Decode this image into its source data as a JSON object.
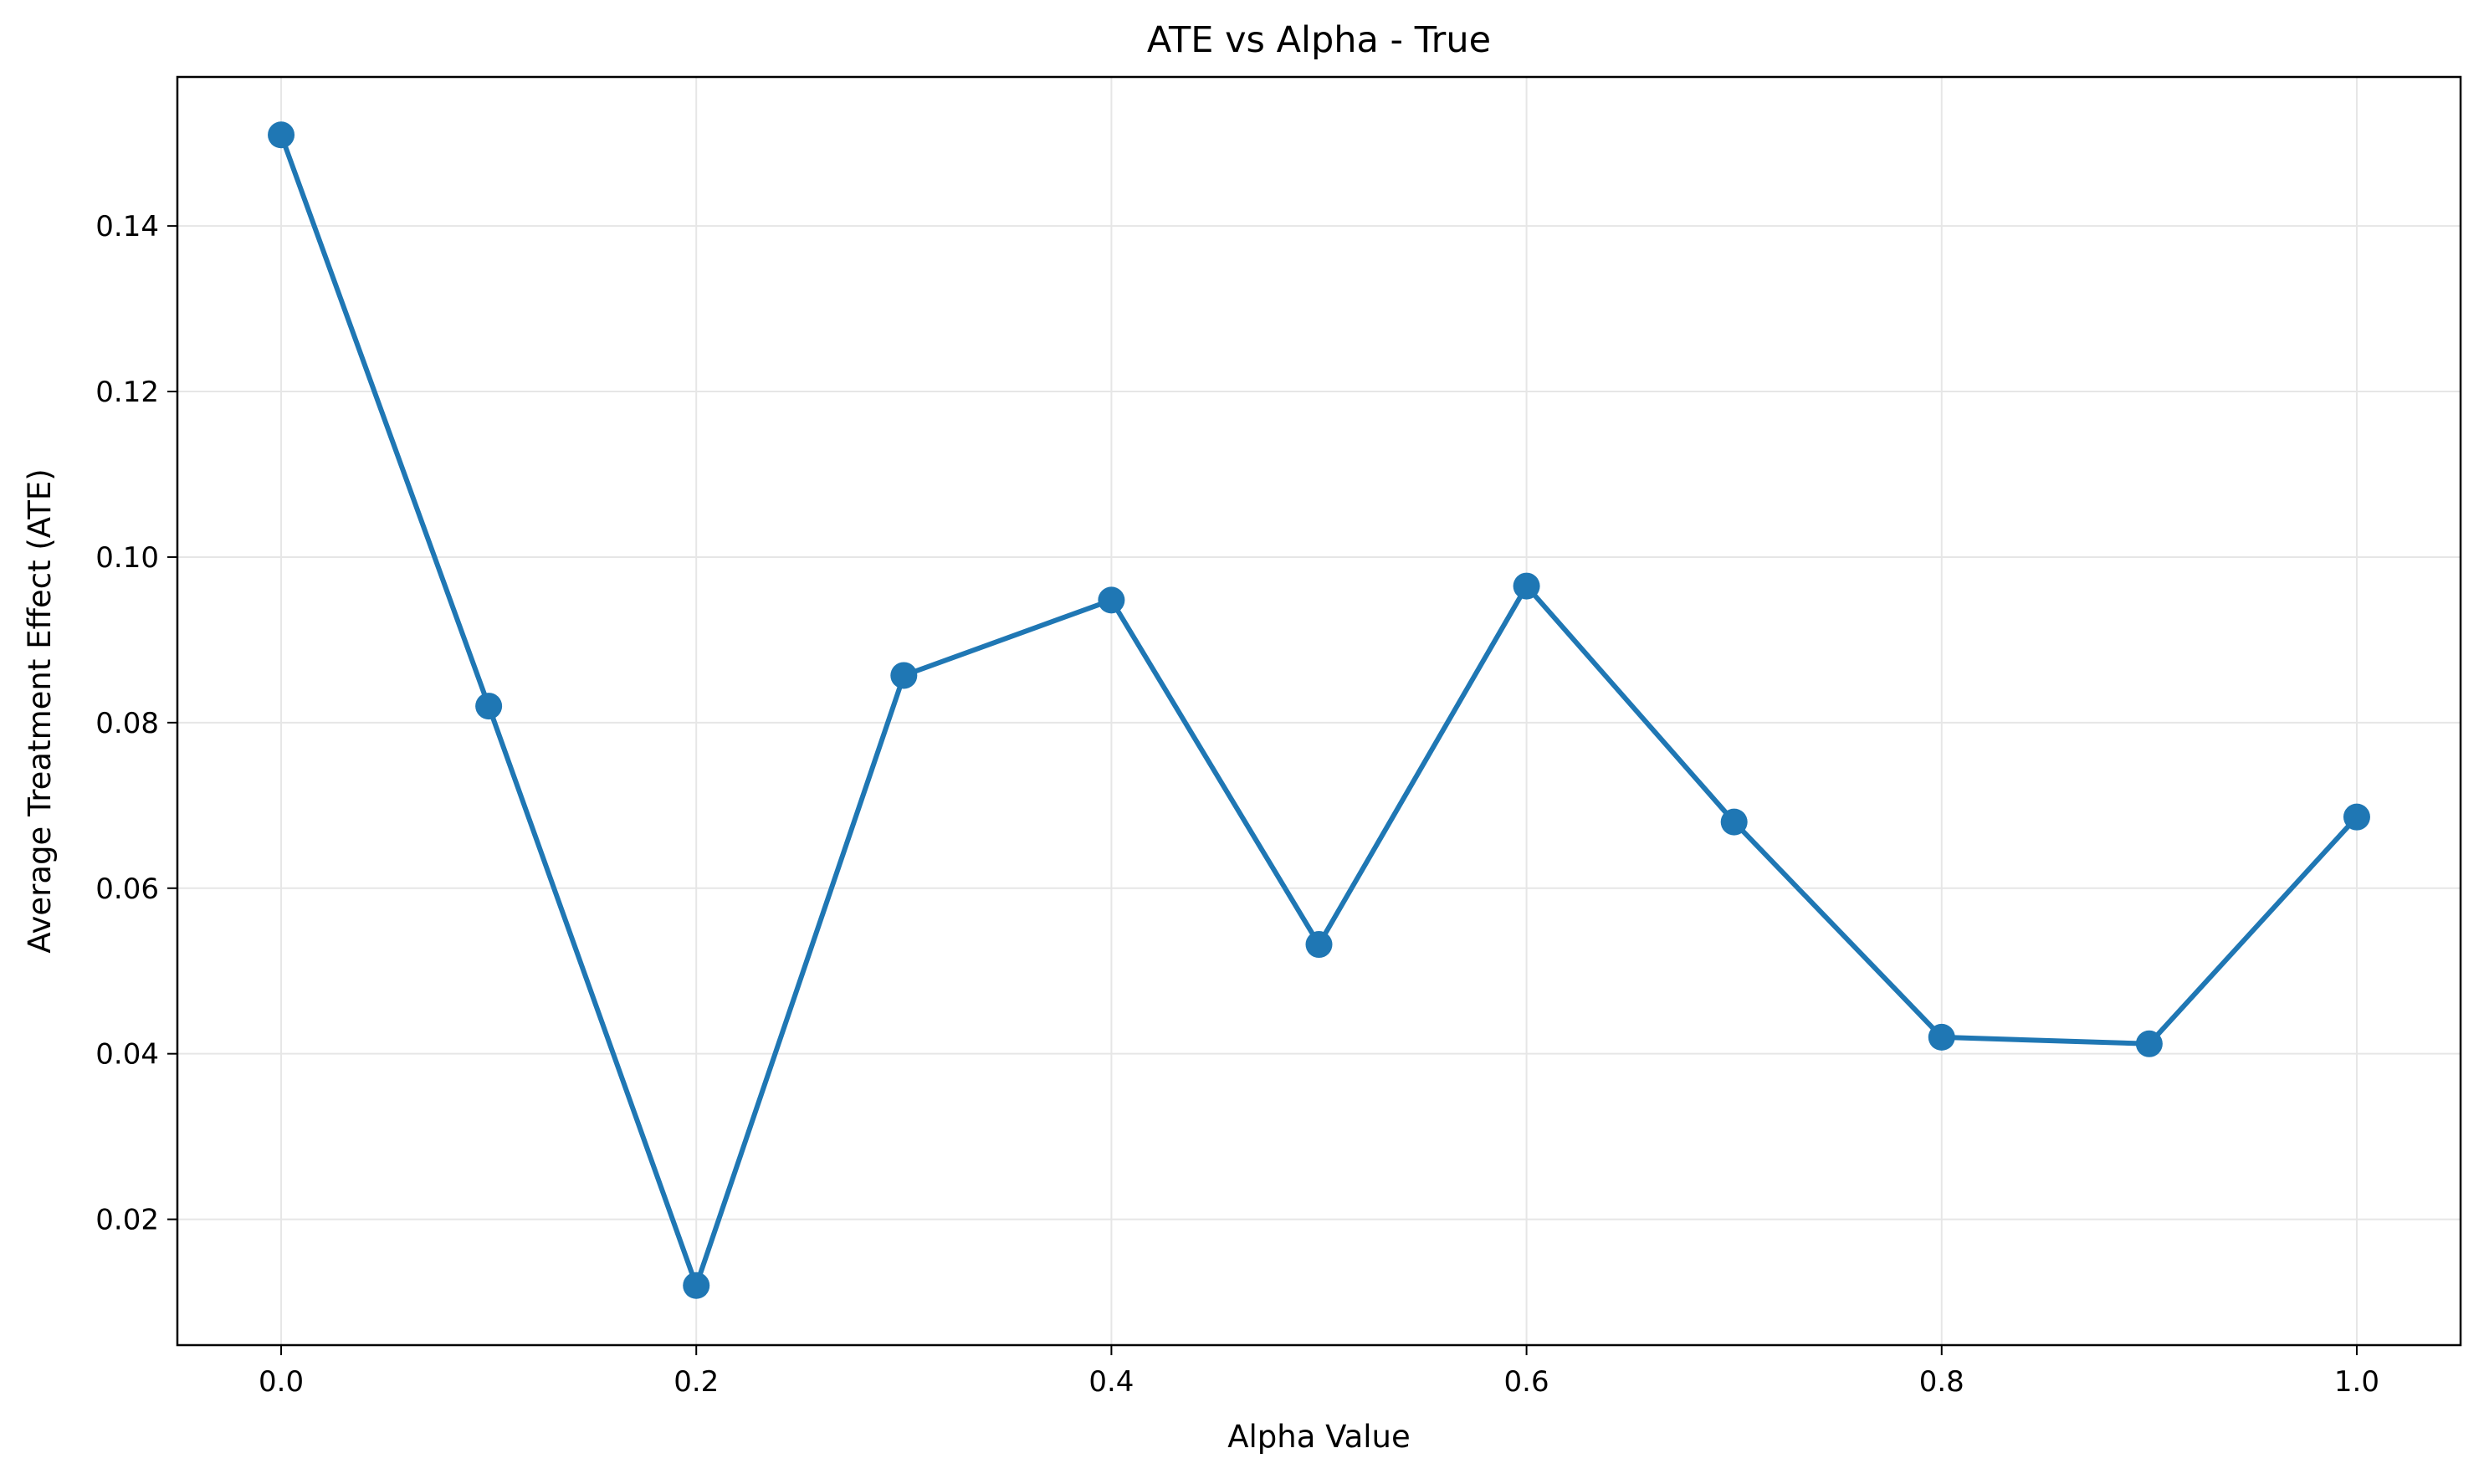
{
  "chart_data": {
    "type": "line",
    "title": "ATE vs Alpha - True",
    "xlabel": "Alpha Value",
    "ylabel": "Average Treatment Effect (ATE)",
    "xlim": [
      -0.05,
      1.05
    ],
    "ylim": [
      0.0048,
      0.158
    ],
    "xticks": [
      0.0,
      0.2,
      0.4,
      0.6,
      0.8,
      1.0
    ],
    "xtick_labels": [
      "0.0",
      "0.2",
      "0.4",
      "0.6",
      "0.8",
      "1.0"
    ],
    "yticks": [
      0.02,
      0.04,
      0.06,
      0.08,
      0.1,
      0.12,
      0.14
    ],
    "ytick_labels": [
      "0.02",
      "0.04",
      "0.06",
      "0.08",
      "0.10",
      "0.12",
      "0.14"
    ],
    "grid": true,
    "legend": false,
    "series": [
      {
        "color": "#1f77b4",
        "marker": "circle",
        "x": [
          0.0,
          0.1,
          0.2,
          0.3,
          0.4,
          0.5,
          0.6,
          0.7,
          0.8,
          0.9,
          1.0
        ],
        "y": [
          0.151,
          0.082,
          0.012,
          0.0857,
          0.0948,
          0.0532,
          0.0965,
          0.068,
          0.042,
          0.0412,
          0.0686
        ]
      }
    ]
  }
}
